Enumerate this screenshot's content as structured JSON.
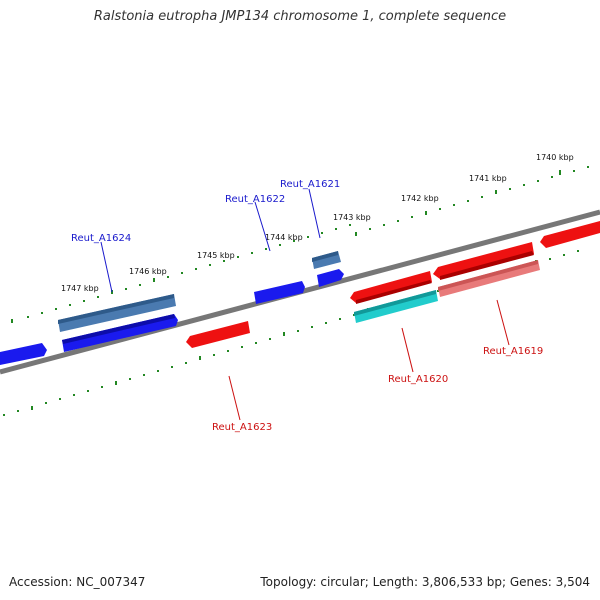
{
  "title": "Ralstonia eutropha JMP134 chromosome 1, complete sequence",
  "footer": {
    "accession": "Accession: NC_007347",
    "summary": "Topology: circular; Length: 3,806,533 bp; Genes: 3,504"
  },
  "colors": {
    "backbone": "#777777",
    "tick": "#228822",
    "forward_gene": "#1a1aee",
    "forward_gene_alt": "#4a7ab0",
    "reverse_gene": "#ee1111",
    "reverse_gene_light": "#e87a7a",
    "reverse_gene_cyan": "#22cccc",
    "forward_label": "#1a1acc",
    "reverse_label": "#cc1111"
  },
  "scale_labels": [
    "1740 kbp",
    "1741 kbp",
    "1742 kbp",
    "1743 kbp",
    "1744 kbp",
    "1745 kbp",
    "1746 kbp",
    "1747 kbp"
  ],
  "gene_labels": {
    "forward": [
      "Reut_A1621",
      "Reut_A1622",
      "Reut_A1624"
    ],
    "reverse": [
      "Reut_A1619",
      "Reut_A1620",
      "Reut_A1623"
    ]
  }
}
